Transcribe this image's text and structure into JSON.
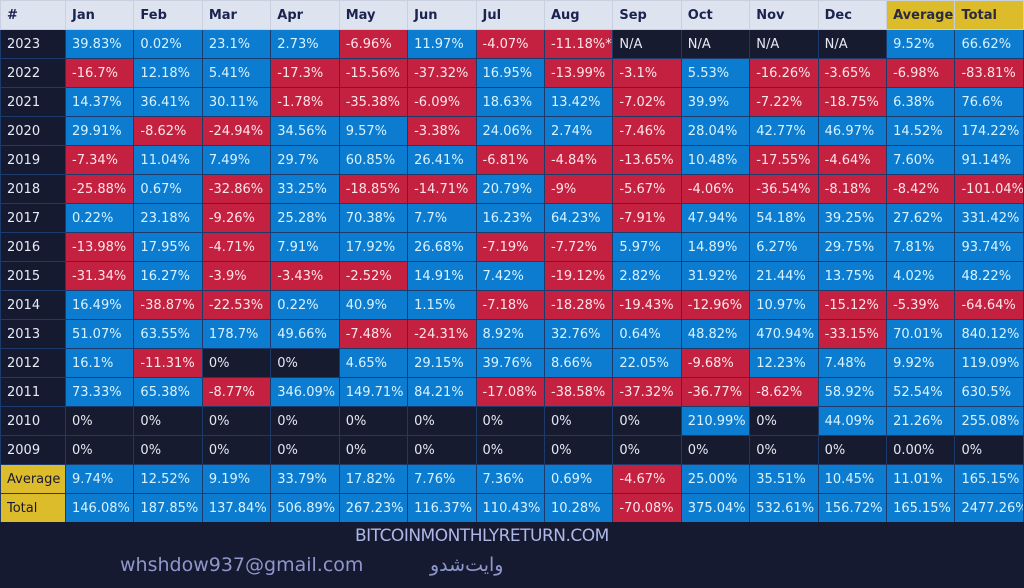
{
  "header": [
    "#",
    "Jan",
    "Feb",
    "Mar",
    "Apr",
    "May",
    "Jun",
    "Jul",
    "Aug",
    "Sep",
    "Oct",
    "Nov",
    "Dec",
    "Average",
    "Total"
  ],
  "rows": [
    [
      "2023",
      "39.83%",
      "0.02%",
      "23.1%",
      "2.73%",
      "-6.96%",
      "11.97%",
      "-4.07%",
      "-11.18%*",
      "N/A",
      "N/A",
      "N/A",
      "N/A",
      "9.52%",
      "66.62%"
    ],
    [
      "2022",
      "-16.7%",
      "12.18%",
      "5.41%",
      "-17.3%",
      "-15.56%",
      "-37.32%",
      "16.95%",
      "-13.99%",
      "-3.1%",
      "5.53%",
      "-16.26%",
      "-3.65%",
      "-6.98%",
      "-83.81%"
    ],
    [
      "2021",
      "14.37%",
      "36.41%",
      "30.11%",
      "-1.78%",
      "-35.38%",
      "-6.09%",
      "18.63%",
      "13.42%",
      "-7.02%",
      "39.9%",
      "-7.22%",
      "-18.75%",
      "6.38%",
      "76.6%"
    ],
    [
      "2020",
      "29.91%",
      "-8.62%",
      "-24.94%",
      "34.56%",
      "9.57%",
      "-3.38%",
      "24.06%",
      "2.74%",
      "-7.46%",
      "28.04%",
      "42.77%",
      "46.97%",
      "14.52%",
      "174.22%"
    ],
    [
      "2019",
      "-7.34%",
      "11.04%",
      "7.49%",
      "29.7%",
      "60.85%",
      "26.41%",
      "-6.81%",
      "-4.84%",
      "-13.65%",
      "10.48%",
      "-17.55%",
      "-4.64%",
      "7.60%",
      "91.14%"
    ],
    [
      "2018",
      "-25.88%",
      "0.67%",
      "-32.86%",
      "33.25%",
      "-18.85%",
      "-14.71%",
      "20.79%",
      "-9%",
      "-5.67%",
      "-4.06%",
      "-36.54%",
      "-8.18%",
      "-8.42%",
      "-101.04%"
    ],
    [
      "2017",
      "0.22%",
      "23.18%",
      "-9.26%",
      "25.28%",
      "70.38%",
      "7.7%",
      "16.23%",
      "64.23%",
      "-7.91%",
      "47.94%",
      "54.18%",
      "39.25%",
      "27.62%",
      "331.42%"
    ],
    [
      "2016",
      "-13.98%",
      "17.95%",
      "-4.71%",
      "7.91%",
      "17.92%",
      "26.68%",
      "-7.19%",
      "-7.72%",
      "5.97%",
      "14.89%",
      "6.27%",
      "29.75%",
      "7.81%",
      "93.74%"
    ],
    [
      "2015",
      "-31.34%",
      "16.27%",
      "-3.9%",
      "-3.43%",
      "-2.52%",
      "14.91%",
      "7.42%",
      "-19.12%",
      "2.82%",
      "31.92%",
      "21.44%",
      "13.75%",
      "4.02%",
      "48.22%"
    ],
    [
      "2014",
      "16.49%",
      "-38.87%",
      "-22.53%",
      "0.22%",
      "40.9%",
      "1.15%",
      "-7.18%",
      "-18.28%",
      "-19.43%",
      "-12.96%",
      "10.97%",
      "-15.12%",
      "-5.39%",
      "-64.64%"
    ],
    [
      "2013",
      "51.07%",
      "63.55%",
      "178.7%",
      "49.66%",
      "-7.48%",
      "-24.31%",
      "8.92%",
      "32.76%",
      "0.64%",
      "48.82%",
      "470.94%",
      "-33.15%",
      "70.01%",
      "840.12%"
    ],
    [
      "2012",
      "16.1%",
      "-11.31%",
      "0%",
      "0%",
      "4.65%",
      "29.15%",
      "39.76%",
      "8.66%",
      "22.05%",
      "-9.68%",
      "12.23%",
      "7.48%",
      "9.92%",
      "119.09%"
    ],
    [
      "2011",
      "73.33%",
      "65.38%",
      "-8.77%",
      "346.09%",
      "149.71%",
      "84.21%",
      "-17.08%",
      "-38.58%",
      "-37.32%",
      "-36.77%",
      "-8.62%",
      "58.92%",
      "52.54%",
      "630.5%"
    ],
    [
      "2010",
      "0%",
      "0%",
      "0%",
      "0%",
      "0%",
      "0%",
      "0%",
      "0%",
      "0%",
      "210.99%",
      "0%",
      "44.09%",
      "21.26%",
      "255.08%"
    ],
    [
      "2009",
      "0%",
      "0%",
      "0%",
      "0%",
      "0%",
      "0%",
      "0%",
      "0%",
      "0%",
      "0%",
      "0%",
      "0%",
      "0.00%",
      "0%"
    ]
  ],
  "summary": [
    [
      "Average",
      "9.74%",
      "12.52%",
      "9.19%",
      "33.79%",
      "17.82%",
      "7.76%",
      "7.36%",
      "0.69%",
      "-4.67%",
      "25.00%",
      "35.51%",
      "10.45%",
      "11.01%",
      "165.15%"
    ],
    [
      "Total",
      "146.08%",
      "187.85%",
      "137.84%",
      "506.89%",
      "267.23%",
      "116.37%",
      "110.43%",
      "10.28%",
      "-70.08%",
      "375.04%",
      "532.61%",
      "156.72%",
      "165.15%",
      "2477.26%"
    ]
  ],
  "watermarks": {
    "site": "BITCOINMONTHLYRETURN.COM",
    "email": "whshdow937@gmail.com",
    "persian": "وایت‌شدو"
  },
  "colors": {
    "positive": "#0b7cd0",
    "negative": "#c3213f",
    "empty": "#161b30",
    "header": "#dde3ef",
    "highlight": "#dcbc2a"
  }
}
